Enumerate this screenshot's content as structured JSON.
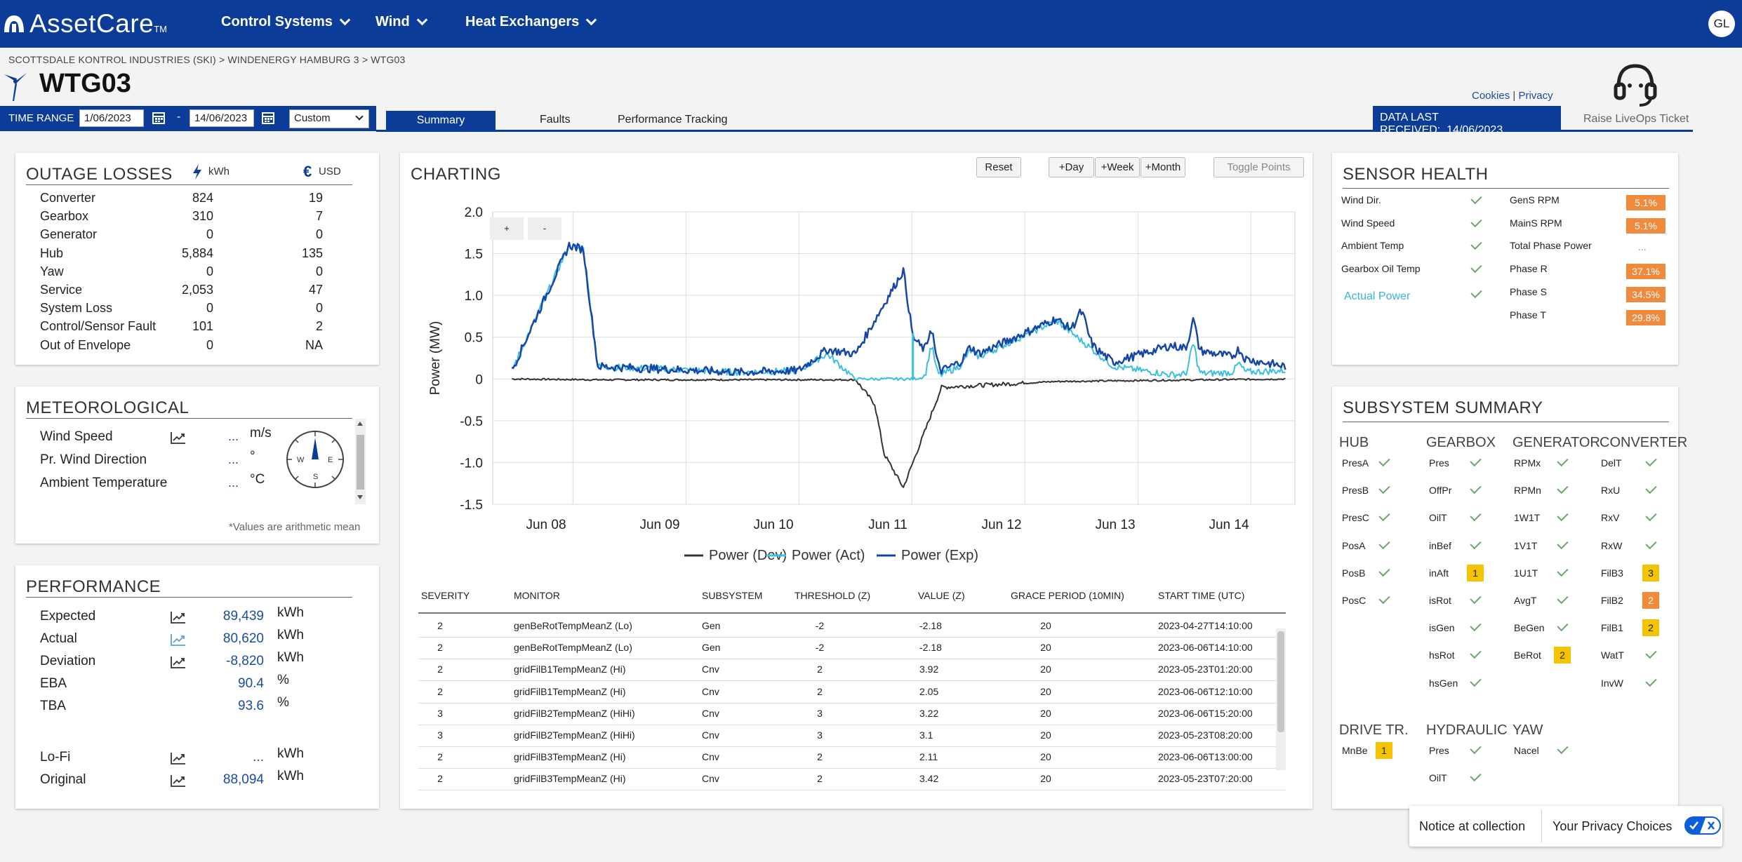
{
  "app": {
    "brand": "AssetCare",
    "tm": "TM",
    "avatar_initials": "GL"
  },
  "nav": {
    "items": [
      {
        "label": "Control Systems"
      },
      {
        "label": "Wind"
      },
      {
        "label": "Heat Exchangers"
      }
    ]
  },
  "breadcrumb": "SCOTTSDALE KONTROL INDUSTRIES (SKI) > WINDENERGY HAMBURG 3 > WTG03",
  "page_title": "WTG03",
  "links": {
    "cookies": "Cookies",
    "sep": "|",
    "privacy": "Privacy"
  },
  "liveops": "Raise LiveOps Ticket",
  "time_range": {
    "label": "TIME RANGE",
    "start": "1/06/2023",
    "dash": "-",
    "end": "14/06/2023",
    "mode": "Custom"
  },
  "tabs": [
    {
      "label": "Summary"
    },
    {
      "label": "Faults"
    },
    {
      "label": "Performance Tracking"
    }
  ],
  "data_received": {
    "label": "DATA LAST RECEIVED:",
    "value": "14/06/2023"
  },
  "outage": {
    "title": "OUTAGE LOSSES",
    "kwh_label": "kWh",
    "usd_label": "USD",
    "rows": [
      {
        "name": "Converter",
        "kwh": "824",
        "usd": "19"
      },
      {
        "name": "Gearbox",
        "kwh": "310",
        "usd": "7"
      },
      {
        "name": "Generator",
        "kwh": "0",
        "usd": "0"
      },
      {
        "name": "Hub",
        "kwh": "5,884",
        "usd": "135"
      },
      {
        "name": "Yaw",
        "kwh": "0",
        "usd": "0"
      },
      {
        "name": "Service",
        "kwh": "2,053",
        "usd": "47"
      },
      {
        "name": "System Loss",
        "kwh": "0",
        "usd": "0"
      },
      {
        "name": "Control/Sensor Fault",
        "kwh": "101",
        "usd": "2"
      },
      {
        "name": "Out of Envelope",
        "kwh": "0",
        "usd": "NA"
      }
    ]
  },
  "meteo": {
    "title": "METEOROLOGICAL",
    "rows": [
      {
        "name": "Wind Speed",
        "value": "...",
        "unit": "m/s"
      },
      {
        "name": "Pr. Wind Direction",
        "value": "...",
        "unit": "°"
      },
      {
        "name": "Ambient Temperature",
        "value": "...",
        "unit": "°C"
      }
    ],
    "note": "*Values are arithmetic mean",
    "compass": {
      "w": "W",
      "e": "E",
      "s": "S"
    }
  },
  "performance": {
    "title": "PERFORMANCE",
    "rows": [
      {
        "name": "Expected",
        "value": "89,439",
        "unit": "kWh"
      },
      {
        "name": "Actual",
        "value": "80,620",
        "unit": "kWh"
      },
      {
        "name": "Deviation",
        "value": "-8,820",
        "unit": "kWh"
      },
      {
        "name": "EBA",
        "value": "90.4",
        "unit": "%"
      },
      {
        "name": "TBA",
        "value": "93.6",
        "unit": "%"
      },
      {
        "name": "Lo-Fi",
        "value": "...",
        "unit": "kWh"
      },
      {
        "name": "Original",
        "value": "88,094",
        "unit": "kWh"
      }
    ]
  },
  "charting": {
    "title": "CHARTING",
    "buttons": {
      "reset": "Reset",
      "day": "+Day",
      "week": "+Week",
      "month": "+Month",
      "toggle": "Toggle Points",
      "zoom_in": "+",
      "zoom_out": "-"
    }
  },
  "chart_data": {
    "type": "line",
    "ylabel": "Power (MW)",
    "xlabel": "",
    "ylim": [
      -1.5,
      2.0
    ],
    "yticks": [
      "2.0",
      "1.5",
      "1.0",
      "0.5",
      "0",
      "-0.5",
      "-1.0",
      "-1.5"
    ],
    "xticks": [
      "Jun 08",
      "Jun 09",
      "Jun 10",
      "Jun 11",
      "Jun 12",
      "Jun 13",
      "Jun 14"
    ],
    "colors": {
      "dev": "#333333",
      "act": "#3bbfe0",
      "exp": "#1747a6"
    },
    "series": [
      {
        "name": "Power (Dev)",
        "x": [
          "2023-06-07 18:00",
          "2023-06-08 12:00",
          "2023-06-10 18:00",
          "2023-06-10 22:00",
          "2023-06-11 00:00",
          "2023-06-11 04:00",
          "2023-06-11 12:00",
          "2023-06-12 12:00",
          "2023-06-14 12:00"
        ],
        "values": [
          0.0,
          -0.01,
          -0.01,
          -0.3,
          -0.9,
          -1.3,
          -0.1,
          -0.03,
          0.0
        ]
      },
      {
        "name": "Power (Act)",
        "x": [
          "2023-06-07 18:00",
          "2023-06-08 06:00",
          "2023-06-08 09:00",
          "2023-06-08 12:00",
          "2023-06-09 18:00",
          "2023-06-10 06:00",
          "2023-06-10 12:00",
          "2023-06-10 18:00",
          "2023-06-11 00:00",
          "2023-06-11 04:00",
          "2023-06-11 06:00",
          "2023-06-11 12:00",
          "2023-06-12 12:00",
          "2023-06-13 00:00",
          "2023-06-13 12:00",
          "2023-06-14 12:00"
        ],
        "values": [
          0.1,
          1.6,
          1.55,
          0.15,
          0.08,
          0.1,
          0.3,
          0.0,
          0.0,
          0.0,
          0.0,
          0.05,
          0.7,
          0.15,
          0.05,
          0.1
        ]
      },
      {
        "name": "Power (Exp)",
        "x": [
          "2023-06-07 18:00",
          "2023-06-08 06:00",
          "2023-06-08 09:00",
          "2023-06-08 12:00",
          "2023-06-09 18:00",
          "2023-06-10 06:00",
          "2023-06-10 12:00",
          "2023-06-10 18:00",
          "2023-06-11 00:00",
          "2023-06-11 04:00",
          "2023-06-11 06:00",
          "2023-06-11 12:00",
          "2023-06-12 12:00",
          "2023-06-13 00:00",
          "2023-06-13 12:00",
          "2023-06-14 12:00"
        ],
        "values": [
          0.1,
          1.6,
          1.55,
          0.15,
          0.08,
          0.1,
          0.35,
          0.3,
          0.9,
          1.3,
          0.5,
          0.1,
          0.72,
          0.2,
          0.4,
          0.15
        ]
      }
    ],
    "legend": [
      "Power (Dev)",
      "Power (Act)",
      "Power (Exp)"
    ]
  },
  "table": {
    "headers": [
      "SEVERITY",
      "MONITOR",
      "SUBSYSTEM",
      "THRESHOLD (Z)",
      "VALUE (Z)",
      "GRACE PERIOD (10MIN)",
      "START TIME (UTC)"
    ],
    "rows": [
      [
        "2",
        "genBeRotTempMeanZ (Lo)",
        "Gen",
        "-2",
        "-2.18",
        "20",
        "2023-04-27T14:10:00"
      ],
      [
        "2",
        "genBeRotTempMeanZ (Lo)",
        "Gen",
        "-2",
        "-2.18",
        "20",
        "2023-06-06T14:10:00"
      ],
      [
        "2",
        "gridFilB1TempMeanZ (Hi)",
        "Cnv",
        "2",
        "3.92",
        "20",
        "2023-05-23T01:20:00"
      ],
      [
        "2",
        "gridFilB1TempMeanZ (Hi)",
        "Cnv",
        "2",
        "2.05",
        "20",
        "2023-06-06T12:10:00"
      ],
      [
        "3",
        "gridFilB2TempMeanZ (HiHi)",
        "Cnv",
        "3",
        "3.22",
        "20",
        "2023-06-06T15:20:00"
      ],
      [
        "3",
        "gridFilB2TempMeanZ (HiHi)",
        "Cnv",
        "3",
        "3.1",
        "20",
        "2023-05-23T08:20:00"
      ],
      [
        "2",
        "gridFilB3TempMeanZ (Hi)",
        "Cnv",
        "2",
        "2.11",
        "20",
        "2023-06-06T13:00:00"
      ],
      [
        "2",
        "gridFilB3TempMeanZ (Hi)",
        "Cnv",
        "2",
        "3.42",
        "20",
        "2023-05-23T07:20:00"
      ]
    ]
  },
  "sensor_health": {
    "title": "SENSOR HEALTH",
    "left": [
      {
        "name": "Wind Dir."
      },
      {
        "name": "Wind Speed"
      },
      {
        "name": "Ambient Temp"
      },
      {
        "name": "Gearbox Oil Temp"
      },
      {
        "name": "Actual Power"
      }
    ],
    "right": [
      {
        "name": "GenS RPM",
        "value": "5.1%"
      },
      {
        "name": "MainS RPM",
        "value": "5.1%"
      },
      {
        "name": "Total Phase Power",
        "value": "..."
      },
      {
        "name": "Phase R",
        "value": "37.1%"
      },
      {
        "name": "Phase S",
        "value": "34.5%"
      },
      {
        "name": "Phase T",
        "value": "29.8%"
      }
    ]
  },
  "subsystem": {
    "title": "SUBSYSTEM SUMMARY",
    "groups": {
      "hub": {
        "label": "HUB",
        "items": [
          "PresA",
          "PresB",
          "PresC",
          "PosA",
          "PosB",
          "PosC"
        ]
      },
      "gearbox": {
        "label": "GEARBOX",
        "items": [
          "Pres",
          "OffPr",
          "OilT",
          "inBef",
          "inAft",
          "isRot",
          "isGen",
          "hsRot",
          "hsGen"
        ],
        "badges": {
          "inAft": "1"
        }
      },
      "generator": {
        "label": "GENERATOR",
        "items": [
          "RPMx",
          "RPMn",
          "1W1T",
          "1V1T",
          "1U1T",
          "AvgT",
          "BeGen",
          "BeRot"
        ],
        "badges": {
          "BeRot": "2"
        }
      },
      "converter": {
        "label": "CONVERTER",
        "items": [
          "DelT",
          "RxU",
          "RxV",
          "RxW",
          "FilB3",
          "FilB2",
          "FilB1",
          "WatT",
          "InvW"
        ],
        "badges": {
          "FilB3": "3",
          "FilB2": "2",
          "FilB1": "2"
        }
      },
      "drive": {
        "label": "DRIVE TR.",
        "items": [
          "MnBe"
        ],
        "badges": {
          "MnBe": "1"
        }
      },
      "hydraulic": {
        "label": "HYDRAULIC",
        "items": [
          "Pres",
          "OilT"
        ]
      },
      "yaw": {
        "label": "YAW",
        "items": [
          "Nacel"
        ]
      }
    }
  },
  "privacy": {
    "notice": "Notice at collection",
    "choices": "Your Privacy Choices"
  }
}
